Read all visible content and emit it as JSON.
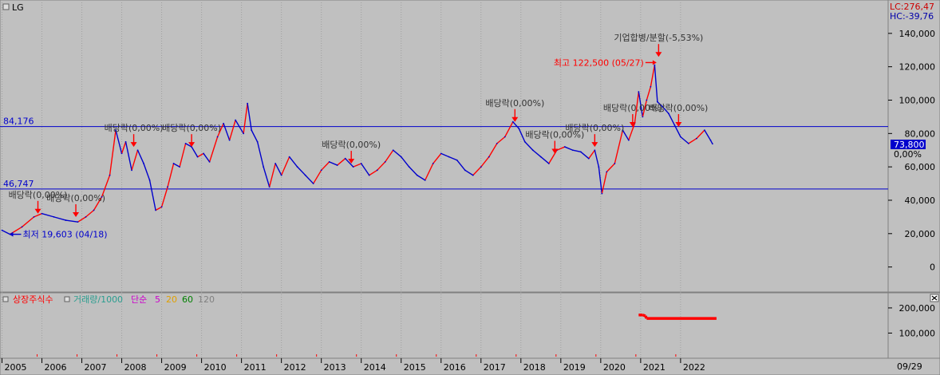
{
  "header": {
    "title": "LG",
    "lc_label": "LC:276,47",
    "hc_label": "HC:-39,76",
    "corner_right_label": "09/29",
    "volume_close_icon": "x-close-icon"
  },
  "colors": {
    "background": "#c0c0c0",
    "grid": "#a0a0a0",
    "up_series": "#ff0000",
    "down_series": "#0000cc",
    "reference_line": "#0000cc",
    "annotation_arrow": "#ff0000",
    "annotation_text": "#333333",
    "current_price_bg": "#0000cc",
    "volume_listed_shares": "#ff0000",
    "legend_volume": "#2a9d8f",
    "legend_sma5": "#cc00cc",
    "legend_sma20": "#e0a000",
    "legend_sma60": "#008000",
    "legend_sma120": "#808080"
  },
  "chart_data": [
    {
      "type": "line",
      "title": "LG",
      "y_axis": {
        "ticks": [
          "140,000",
          "120,000",
          "100,000",
          "80,000",
          "60,000",
          "40,000",
          "20,000",
          "0"
        ],
        "tick_values": [
          140000,
          120000,
          100000,
          80000,
          60000,
          40000,
          20000,
          0
        ],
        "ylim": [
          -15000,
          160000
        ]
      },
      "x_axis": {
        "tick_labels": [
          "2005",
          "2006",
          "2007",
          "2008",
          "2009",
          "2010",
          "2011",
          "2012",
          "2013",
          "2014",
          "2015",
          "2016",
          "2017",
          "2018",
          "2019",
          "2020",
          "2021",
          "2022"
        ],
        "tick_years": [
          2005,
          2006,
          2007,
          2008,
          2009,
          2010,
          2011,
          2012,
          2013,
          2014,
          2015,
          2016,
          2017,
          2018,
          2019,
          2020,
          2021,
          2022
        ],
        "xlim": [
          2004.95,
          2027.2
        ]
      },
      "reference_lines": [
        {
          "value": 84176,
          "label": "84,176"
        },
        {
          "value": 46747,
          "label": "46,747"
        }
      ],
      "current_price": {
        "value": 73800,
        "label": "73,800",
        "pct_label": "0,00%"
      },
      "series": [
        {
          "points": [
            [
              2005.0,
              22000
            ],
            [
              2005.2,
              19603
            ],
            [
              2005.5,
              24000
            ],
            [
              2005.8,
              30000
            ],
            [
              2006.0,
              32000
            ],
            [
              2006.3,
              30000
            ],
            [
              2006.6,
              28000
            ],
            [
              2006.9,
              27000
            ],
            [
              2007.1,
              30000
            ],
            [
              2007.3,
              34000
            ],
            [
              2007.5,
              42000
            ],
            [
              2007.7,
              55000
            ],
            [
              2007.85,
              82000
            ],
            [
              2008.0,
              68000
            ],
            [
              2008.1,
              75000
            ],
            [
              2008.25,
              58000
            ],
            [
              2008.4,
              70000
            ],
            [
              2008.55,
              62000
            ],
            [
              2008.7,
              52000
            ],
            [
              2008.85,
              34000
            ],
            [
              2009.0,
              36000
            ],
            [
              2009.15,
              48000
            ],
            [
              2009.3,
              62000
            ],
            [
              2009.45,
              60000
            ],
            [
              2009.6,
              74000
            ],
            [
              2009.75,
              72000
            ],
            [
              2009.9,
              66000
            ],
            [
              2010.05,
              68000
            ],
            [
              2010.2,
              63000
            ],
            [
              2010.4,
              78000
            ],
            [
              2010.55,
              86000
            ],
            [
              2010.7,
              76000
            ],
            [
              2010.85,
              88000
            ],
            [
              2011.05,
              80000
            ],
            [
              2011.15,
              98000
            ],
            [
              2011.25,
              82000
            ],
            [
              2011.4,
              75000
            ],
            [
              2011.55,
              60000
            ],
            [
              2011.7,
              48000
            ],
            [
              2011.85,
              62000
            ],
            [
              2012.0,
              55000
            ],
            [
              2012.2,
              66000
            ],
            [
              2012.4,
              60000
            ],
            [
              2012.6,
              55000
            ],
            [
              2012.8,
              50000
            ],
            [
              2013.0,
              58000
            ],
            [
              2013.2,
              63000
            ],
            [
              2013.4,
              61000
            ],
            [
              2013.6,
              65000
            ],
            [
              2013.8,
              60000
            ],
            [
              2014.0,
              62000
            ],
            [
              2014.2,
              55000
            ],
            [
              2014.4,
              58000
            ],
            [
              2014.6,
              63000
            ],
            [
              2014.8,
              70000
            ],
            [
              2015.0,
              66000
            ],
            [
              2015.2,
              60000
            ],
            [
              2015.4,
              55000
            ],
            [
              2015.6,
              52000
            ],
            [
              2015.8,
              62000
            ],
            [
              2016.0,
              68000
            ],
            [
              2016.2,
              66000
            ],
            [
              2016.4,
              64000
            ],
            [
              2016.6,
              58000
            ],
            [
              2016.8,
              55000
            ],
            [
              2017.0,
              60000
            ],
            [
              2017.2,
              66000
            ],
            [
              2017.4,
              74000
            ],
            [
              2017.6,
              78000
            ],
            [
              2017.8,
              87000
            ],
            [
              2017.95,
              83000
            ],
            [
              2018.1,
              75000
            ],
            [
              2018.3,
              70000
            ],
            [
              2018.5,
              66000
            ],
            [
              2018.7,
              62000
            ],
            [
              2018.9,
              70000
            ],
            [
              2019.1,
              72000
            ],
            [
              2019.3,
              70000
            ],
            [
              2019.5,
              69000
            ],
            [
              2019.7,
              65000
            ],
            [
              2019.85,
              70000
            ],
            [
              2019.95,
              60000
            ],
            [
              2020.03,
              44000
            ],
            [
              2020.15,
              57000
            ],
            [
              2020.35,
              62000
            ],
            [
              2020.55,
              82000
            ],
            [
              2020.7,
              76000
            ],
            [
              2020.85,
              86000
            ],
            [
              2020.95,
              105000
            ],
            [
              2021.05,
              90000
            ],
            [
              2021.15,
              100000
            ],
            [
              2021.25,
              108000
            ],
            [
              2021.35,
              121000
            ],
            [
              2021.42,
              99000
            ],
            [
              2021.55,
              96000
            ],
            [
              2021.7,
              92000
            ],
            [
              2021.85,
              85000
            ],
            [
              2022.0,
              78000
            ],
            [
              2022.2,
              74000
            ],
            [
              2022.4,
              77000
            ],
            [
              2022.6,
              82000
            ],
            [
              2022.75,
              76000
            ],
            [
              2022.8,
              73800
            ]
          ]
        }
      ],
      "annotations": [
        {
          "text": "기업합병/분할(-5,53%)",
          "x": 2021.45,
          "y": 125000,
          "color": "text"
        },
        {
          "text": "최고 122,500 (05/27)",
          "x": 2021.4,
          "y": 122500,
          "color": "red"
        },
        {
          "text": "최저 19,603 (04/18)",
          "x": 2005.2,
          "y": 19603,
          "color": "blue"
        },
        {
          "text": "배당락(0,00%)",
          "x": 2005.9,
          "y": 31000,
          "color": "text"
        },
        {
          "text": "배당락(0,00%)",
          "x": 2006.85,
          "y": 29000,
          "color": "text"
        },
        {
          "text": "배당락(0,00%)",
          "x": 2008.3,
          "y": 71000,
          "color": "text"
        },
        {
          "text": "배당락(0,00%)",
          "x": 2009.75,
          "y": 71000,
          "color": "text"
        },
        {
          "text": "배당락(0,00%)",
          "x": 2013.75,
          "y": 61000,
          "color": "text"
        },
        {
          "text": "배당락(0,00%)",
          "x": 2017.85,
          "y": 86000,
          "color": "text"
        },
        {
          "text": "배당락(0,00%)",
          "x": 2018.85,
          "y": 67000,
          "color": "text"
        },
        {
          "text": "배당락(0,00%)",
          "x": 2019.85,
          "y": 71000,
          "color": "text"
        },
        {
          "text": "배당락(0,00%)",
          "x": 2020.8,
          "y": 83000,
          "color": "text"
        },
        {
          "text": "배당락(0,00%)",
          "x": 2021.95,
          "y": 83000,
          "color": "text"
        }
      ]
    },
    {
      "type": "line",
      "legend": [
        "상장주식수",
        "거래량/1000",
        "단순",
        "5",
        "20",
        "60",
        "120"
      ],
      "y_axis": {
        "ticks": [
          "200,000",
          "100,000"
        ],
        "tick_values": [
          200000,
          100000
        ],
        "ylim": [
          0,
          260000
        ]
      },
      "series": [
        {
          "name": "상장주식수",
          "points": [
            [
              2020.95,
              172000
            ],
            [
              2021.05,
              172000
            ],
            [
              2021.12,
              168000
            ],
            [
              2021.15,
              158000
            ],
            [
              2022.9,
              158000
            ]
          ]
        }
      ]
    }
  ]
}
